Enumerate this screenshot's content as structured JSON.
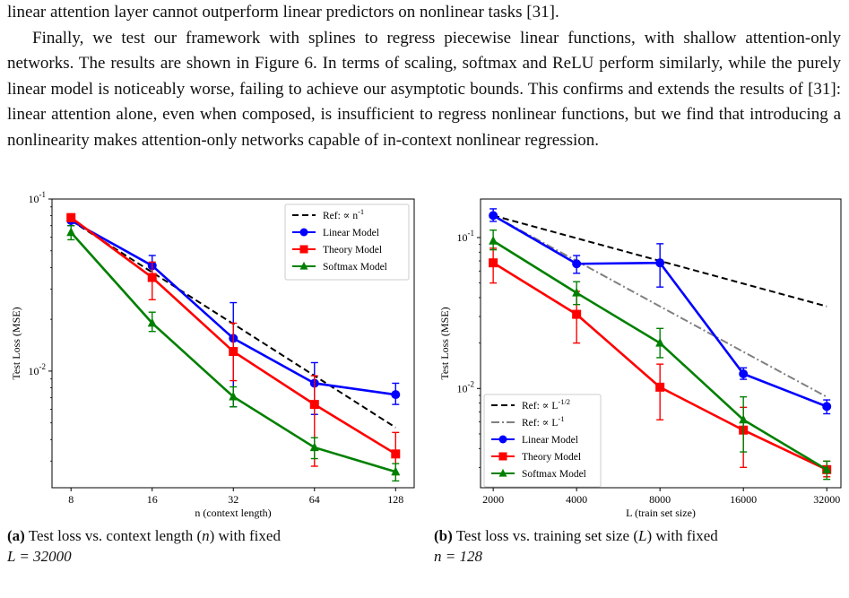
{
  "text": {
    "line0": "linear attention layer cannot outperform linear predictors on nonlinear tasks [31].",
    "para": "Finally, we test our framework with splines to regress piecewise linear functions, with shallow attention-only networks. The results are shown in Figure 6. In terms of scaling, softmax and ReLU perform similarly, while the purely linear model is noticeably worse, failing to achieve our asymptotic bounds. This confirms and extends the results of [31]: linear attention alone, even when composed, is insufficient to regress nonlinear functions, but we find that introducing a nonlinearity makes attention-only networks capable of in-context nonlinear regression."
  },
  "captions": {
    "a": {
      "tag": "(a)",
      "text1": "Test loss vs. context length (",
      "var": "n",
      "text2": ") with fixed",
      "line2": "L = 32000"
    },
    "b": {
      "tag": "(b)",
      "text1": "Test loss vs. training set size (",
      "var": "L",
      "text2": ") with fixed",
      "line2": "n = 128"
    }
  },
  "bottom_fragment": "",
  "colors": {
    "linear": "#0000ff",
    "theory": "#ff0000",
    "softmax": "#008000",
    "ref": "#000000",
    "ref2": "#808080"
  },
  "chart_data": [
    {
      "type": "line",
      "xlabel": "n (context length)",
      "ylabel": "Test Loss (MSE)",
      "x_scale": "log2",
      "y_scale": "log10",
      "xlim": [
        6.8,
        150
      ],
      "ylim": [
        0.0021,
        0.1
      ],
      "x": [
        8,
        16,
        32,
        64,
        128
      ],
      "x_tick_labels": [
        "8",
        "16",
        "32",
        "64",
        "128"
      ],
      "y_ticks": [
        {
          "v": 0.1,
          "label": "10",
          "exp": "-1"
        },
        {
          "v": 0.01,
          "label": "10",
          "exp": "-2"
        }
      ],
      "legend_position": "top-right",
      "series": [
        {
          "name": "Ref: ∝ n",
          "name_exp": "-1",
          "style": "ref",
          "color": "#000000",
          "values": [
            0.075,
            0.0375,
            0.0188,
            0.0094,
            0.0047
          ]
        },
        {
          "name": "Linear Model",
          "marker": "circle",
          "color": "#0000ff",
          "values": [
            0.075,
            0.041,
            0.0155,
            0.0085,
            0.0073
          ],
          "err_lo": [
            0.07,
            0.036,
            0.0062,
            0.0056,
            0.0064
          ],
          "err_hi": [
            0.08,
            0.047,
            0.025,
            0.0112,
            0.0085
          ]
        },
        {
          "name": "Theory Model",
          "marker": "square",
          "color": "#ff0000",
          "values": [
            0.078,
            0.035,
            0.013,
            0.0064,
            0.0033
          ],
          "err_lo": [
            0.074,
            0.026,
            0.0088,
            0.0028,
            0.0025
          ],
          "err_hi": [
            0.082,
            0.043,
            0.019,
            0.0094,
            0.0044
          ]
        },
        {
          "name": "Softmax Model",
          "marker": "triangle",
          "color": "#008000",
          "values": [
            0.064,
            0.019,
            0.0071,
            0.0036,
            0.0026
          ],
          "err_lo": [
            0.058,
            0.017,
            0.0062,
            0.0031,
            0.0023
          ],
          "err_hi": [
            0.07,
            0.022,
            0.0081,
            0.0041,
            0.0029
          ]
        }
      ]
    },
    {
      "type": "line",
      "xlabel": "L (train set size)",
      "ylabel": "Test Loss (MSE)",
      "x_scale": "log2",
      "y_scale": "log10",
      "xlim": [
        1800,
        36000
      ],
      "ylim": [
        0.0022,
        0.18
      ],
      "x": [
        2000,
        4000,
        8000,
        16000,
        32000
      ],
      "x_tick_labels": [
        "2000",
        "4000",
        "8000",
        "16000",
        "32000"
      ],
      "y_ticks": [
        {
          "v": 0.1,
          "label": "10",
          "exp": "-1"
        },
        {
          "v": 0.01,
          "label": "10",
          "exp": "-2"
        }
      ],
      "legend_position": "bottom-left",
      "series": [
        {
          "name": "Ref: ∝ L",
          "name_exp": "-1/2",
          "style": "ref",
          "color": "#000000",
          "values": [
            0.14,
            0.099,
            0.07,
            0.0495,
            0.035
          ]
        },
        {
          "name": "Ref: ∝ L",
          "name_exp": "-1",
          "style": "ref2",
          "color": "#808080",
          "values": [
            0.14,
            0.07,
            0.035,
            0.0175,
            0.0088
          ]
        },
        {
          "name": "Linear Model",
          "marker": "circle",
          "color": "#0000ff",
          "values": [
            0.14,
            0.067,
            0.068,
            0.0125,
            0.0076
          ],
          "err_lo": [
            0.128,
            0.058,
            0.047,
            0.0115,
            0.0068
          ],
          "err_hi": [
            0.155,
            0.076,
            0.091,
            0.0137,
            0.0084
          ]
        },
        {
          "name": "Theory Model",
          "marker": "square",
          "color": "#ff0000",
          "values": [
            0.068,
            0.031,
            0.0102,
            0.0053,
            0.0029
          ],
          "err_lo": [
            0.05,
            0.02,
            0.0062,
            0.003,
            0.0026
          ],
          "err_hi": [
            0.085,
            0.044,
            0.0145,
            0.0075,
            0.0033
          ]
        },
        {
          "name": "Softmax Model",
          "marker": "triangle",
          "color": "#008000",
          "values": [
            0.095,
            0.043,
            0.02,
            0.0062,
            0.0029
          ],
          "err_lo": [
            0.083,
            0.036,
            0.016,
            0.0038,
            0.0025
          ],
          "err_hi": [
            0.112,
            0.051,
            0.025,
            0.0088,
            0.0033
          ]
        }
      ]
    }
  ]
}
